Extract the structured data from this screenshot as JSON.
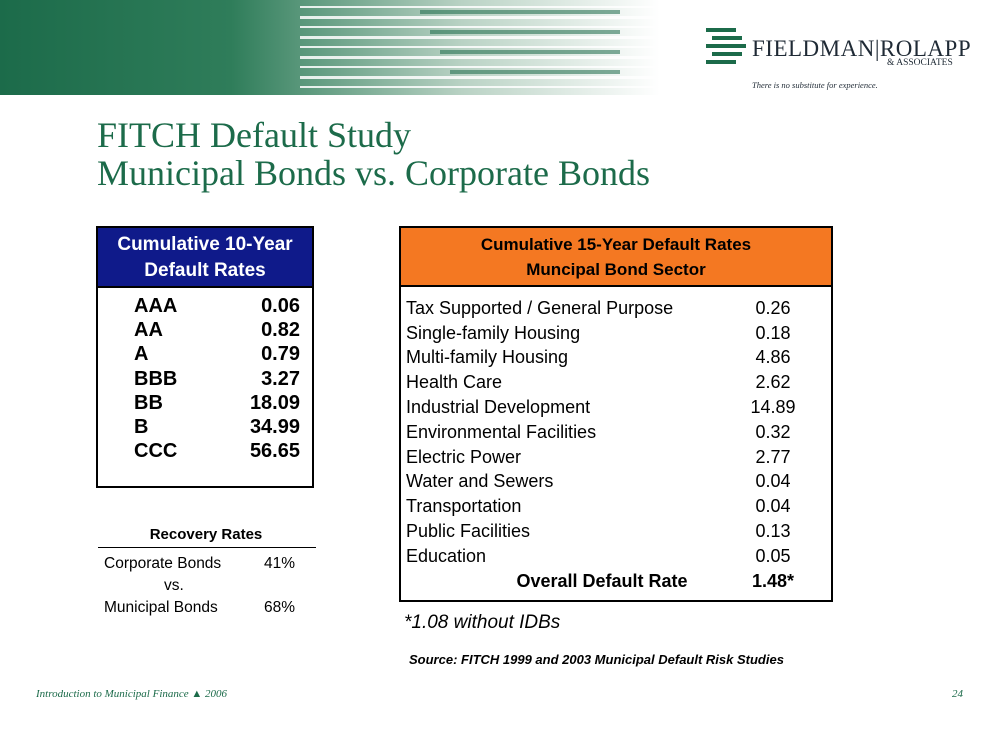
{
  "colors": {
    "brand_green": "#1c6b4a",
    "table1_header": "#0f1a8a",
    "table2_header": "#f47822"
  },
  "logo": {
    "name": "FIELDMAN|ROLAPP",
    "sub": "& ASSOCIATES",
    "tagline": "There is no substitute for experience."
  },
  "title": {
    "line1": "FITCH Default Study",
    "line2": "Municipal Bonds vs. Corporate Bonds"
  },
  "ratings_table": {
    "header_line1": "Cumulative 10-Year",
    "header_line2": "Default Rates",
    "rows": [
      {
        "rating": "AAA",
        "value": "0.06"
      },
      {
        "rating": "AA",
        "value": "0.82"
      },
      {
        "rating": "A",
        "value": "0.79"
      },
      {
        "rating": "BBB",
        "value": "3.27"
      },
      {
        "rating": "BB",
        "value": "18.09"
      },
      {
        "rating": "B",
        "value": "34.99"
      },
      {
        "rating": "CCC",
        "value": "56.65"
      }
    ]
  },
  "recovery": {
    "title": "Recovery Rates",
    "corporate_label": "Corporate Bonds",
    "corporate_value": "41%",
    "vs": "vs.",
    "municipal_label": "Municipal Bonds",
    "municipal_value": "68%"
  },
  "sector_table": {
    "header_line1": "Cumulative 15-Year Default Rates",
    "header_line2": "Muncipal Bond Sector",
    "rows": [
      {
        "sector": "Tax Supported / General Purpose",
        "value": "0.26"
      },
      {
        "sector": "Single-family Housing",
        "value": "0.18"
      },
      {
        "sector": "Multi-family Housing",
        "value": "4.86"
      },
      {
        "sector": "Health Care",
        "value": "2.62"
      },
      {
        "sector": "Industrial Development",
        "value": "14.89"
      },
      {
        "sector": "Environmental Facilities",
        "value": "0.32"
      },
      {
        "sector": "Electric Power",
        "value": "2.77"
      },
      {
        "sector": "Water and Sewers",
        "value": "0.04"
      },
      {
        "sector": "Transportation",
        "value": "0.04"
      },
      {
        "sector": "Public Facilities",
        "value": "0.13"
      },
      {
        "sector": "Education",
        "value": "0.05"
      }
    ],
    "total_label": "Overall Default Rate",
    "total_value": "1.48*"
  },
  "footnote": "*1.08 without IDBs",
  "source": "Source: FITCH 1999 and 2003 Municipal Default Risk Studies",
  "footer": {
    "left": "Introduction to Municipal Finance ▲ 2006",
    "page_number": "24"
  }
}
